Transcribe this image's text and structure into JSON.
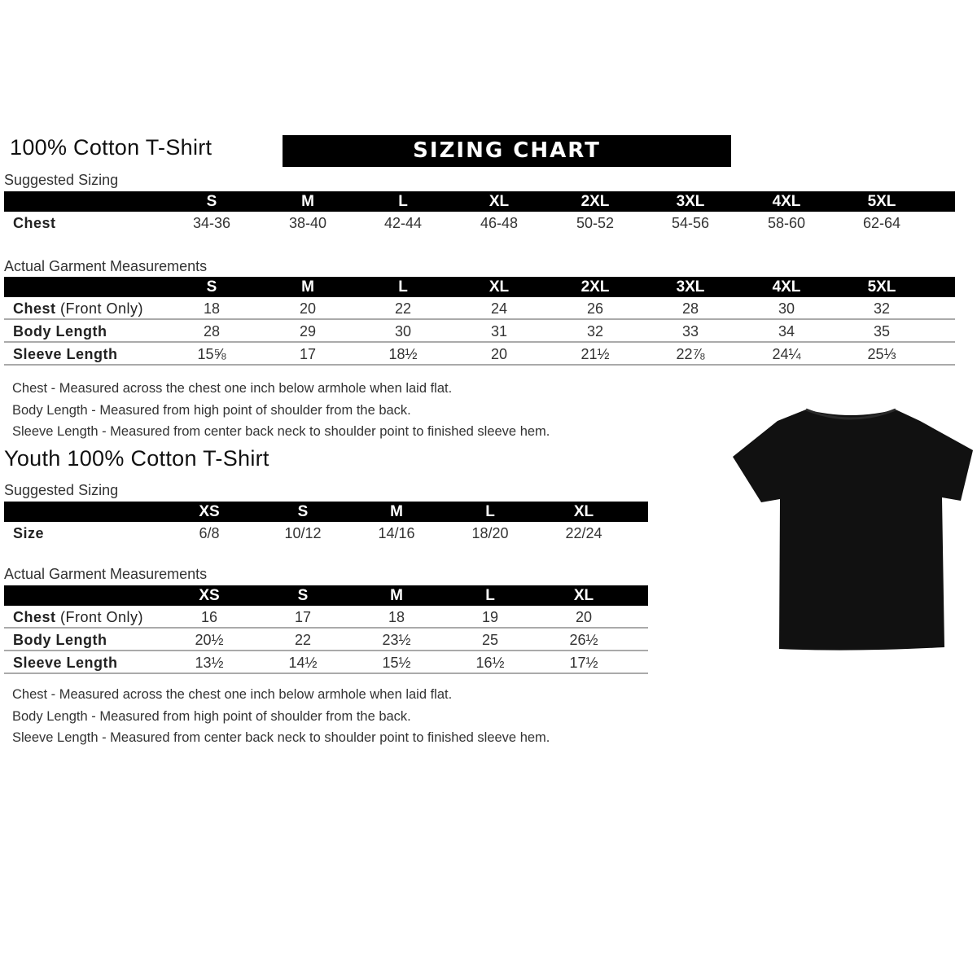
{
  "banner": "SIZING CHART",
  "adult": {
    "title": "100% Cotton T-Shirt",
    "suggested_label": "Suggested Sizing",
    "sizes": [
      "S",
      "M",
      "L",
      "XL",
      "2XL",
      "3XL",
      "4XL",
      "5XL"
    ],
    "suggested_rows": [
      {
        "label": "Chest",
        "label_extra": "",
        "values": [
          "34-36",
          "38-40",
          "42-44",
          "46-48",
          "50-52",
          "54-56",
          "58-60",
          "62-64"
        ]
      }
    ],
    "actual_label": "Actual Garment Measurements",
    "actual_rows": [
      {
        "label": "Chest",
        "label_extra": " (Front Only)",
        "values": [
          "18",
          "20",
          "22",
          "24",
          "26",
          "28",
          "30",
          "32"
        ]
      },
      {
        "label": "Body Length",
        "label_extra": "",
        "values": [
          "28",
          "29",
          "30",
          "31",
          "32",
          "33",
          "34",
          "35"
        ]
      },
      {
        "label": "Sleeve Length",
        "label_extra": "",
        "values": [
          "15⅝",
          "17",
          "18½",
          "20",
          "21½",
          "22⅞",
          "24¼",
          "25⅓"
        ]
      }
    ],
    "notes": [
      "Chest - Measured across the chest one inch below armhole when laid flat.",
      "Body Length - Measured from high point of shoulder from the back.",
      "Sleeve Length - Measured from center back neck to shoulder point to finished sleeve hem."
    ]
  },
  "youth": {
    "title": "Youth 100% Cotton T-Shirt",
    "suggested_label": "Suggested Sizing",
    "sizes": [
      "XS",
      "S",
      "M",
      "L",
      "XL"
    ],
    "suggested_rows": [
      {
        "label": "Size",
        "label_extra": "",
        "values": [
          "6/8",
          "10/12",
          "14/16",
          "18/20",
          "22/24"
        ]
      }
    ],
    "actual_label": "Actual Garment Measurements",
    "actual_rows": [
      {
        "label": "Chest",
        "label_extra": " (Front Only)",
        "values": [
          "16",
          "17",
          "18",
          "19",
          "20"
        ]
      },
      {
        "label": "Body Length",
        "label_extra": "",
        "values": [
          "20½",
          "22",
          "23½",
          "25",
          "26½"
        ]
      },
      {
        "label": "Sleeve Length",
        "label_extra": "",
        "values": [
          "13½",
          "14½",
          "15½",
          "16½",
          "17½"
        ]
      }
    ],
    "notes": [
      "Chest - Measured across the chest one inch below armhole when laid flat.",
      "Body Length - Measured from high point of shoulder from the back.",
      "Sleeve Length - Measured from center back neck to shoulder point to finished sleeve hem."
    ]
  },
  "tshirt_color": "#111111"
}
